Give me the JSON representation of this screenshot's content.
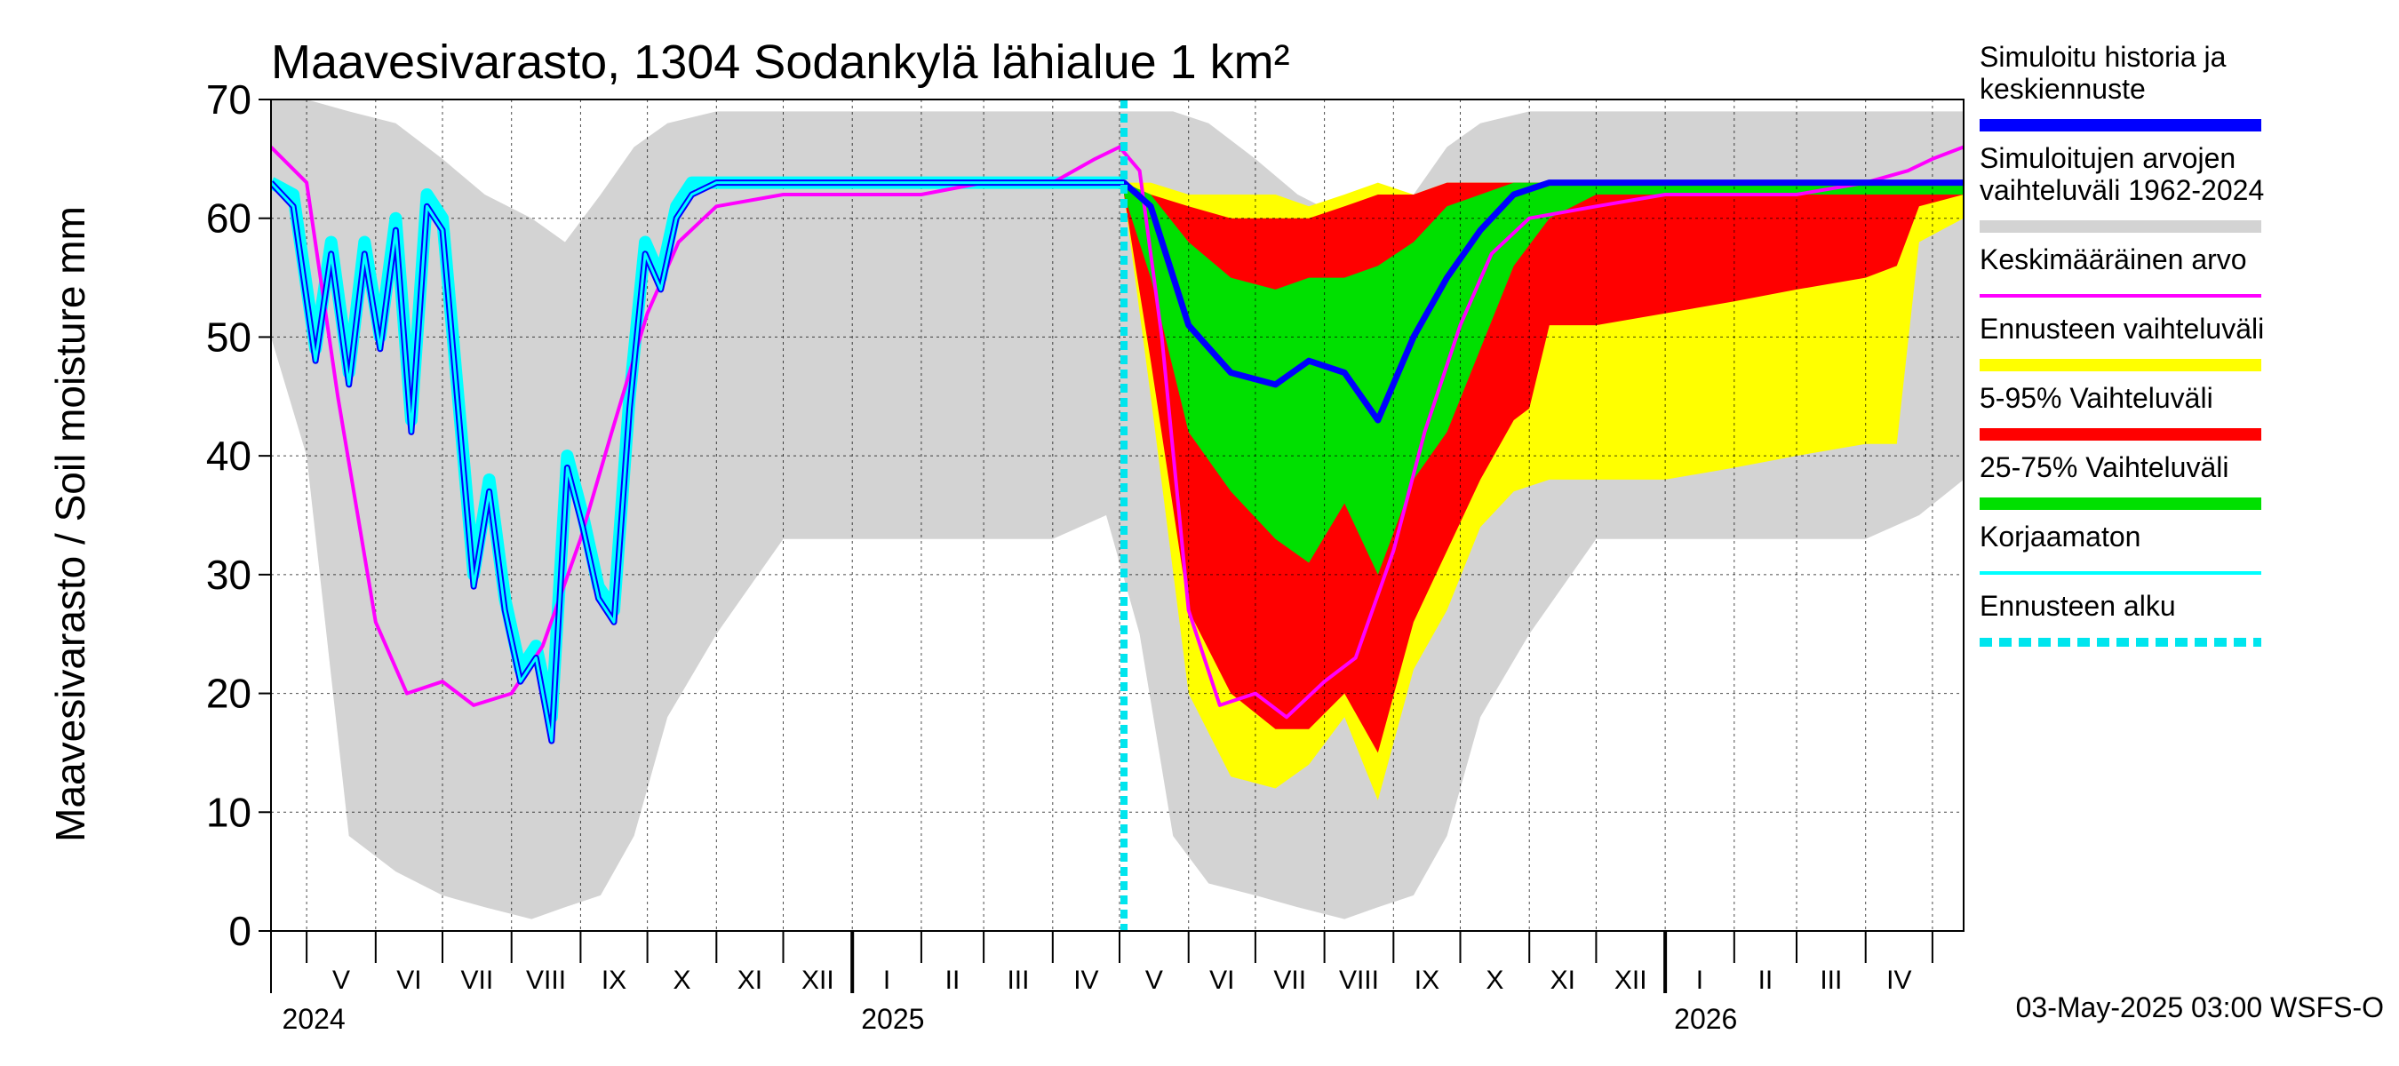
{
  "chart_data": {
    "type": "area",
    "title": "Maavesivarasto, 1304 Sodankylä lähialue 1 km²",
    "ylabel": "Maavesivarasto / Soil moisture   mm",
    "ylim": [
      0,
      70
    ],
    "y_ticks": [
      "0",
      "10",
      "20",
      "30",
      "40",
      "50",
      "60",
      "70"
    ],
    "x_axis": {
      "start": "2024-04-15",
      "end": "2026-05-15",
      "forecast_start": "2025-05-03",
      "months": [
        "V",
        "VI",
        "VII",
        "VIII",
        "IX",
        "X",
        "XI",
        "XII",
        "I",
        "II",
        "III",
        "IV",
        "V",
        "VI",
        "VII",
        "VIII",
        "IX",
        "X",
        "XI",
        "XII",
        "I",
        "II",
        "III",
        "IV"
      ],
      "years": [
        "2024",
        "2025",
        "2026"
      ]
    },
    "grid": true,
    "legend_position": "right",
    "legend": [
      {
        "label": "Simuloitu historia ja keskiennuste",
        "color": "#0000ff",
        "style": "solid"
      },
      {
        "label": "Simuloitujen arvojen vaihteluväli 1962-2024",
        "color": "#d3d3d3",
        "style": "solid"
      },
      {
        "label": "Keskimääräinen arvo",
        "color": "#ff00ff",
        "style": "solid"
      },
      {
        "label": "Ennusteen vaihteluväli",
        "color": "#ffff00",
        "style": "solid"
      },
      {
        "label": "5-95% Vaihteluväli",
        "color": "#ff0000",
        "style": "solid"
      },
      {
        "label": "25-75% Vaihteluväli",
        "color": "#00e000",
        "style": "solid"
      },
      {
        "label": "Korjaamaton",
        "color": "#00ffff",
        "style": "solid"
      },
      {
        "label": "Ennusteen alku",
        "color": "#00e5ee",
        "style": "dashed"
      }
    ],
    "series": [
      {
        "name": "Simuloitujen arvojen vaihteluväli 1962-2024",
        "kind": "band",
        "x": [
          "2024-04-15",
          "2024-05-01",
          "2024-05-20",
          "2024-06-10",
          "2024-07-01",
          "2024-07-20",
          "2024-08-10",
          "2024-08-25",
          "2024-09-10",
          "2024-09-25",
          "2024-10-10",
          "2024-11-01",
          "2024-12-01",
          "2025-01-01",
          "2025-02-01",
          "2025-03-01",
          "2025-04-01",
          "2025-04-25",
          "2025-05-10",
          "2025-05-25",
          "2025-06-10",
          "2025-07-01",
          "2025-07-20",
          "2025-08-10",
          "2025-08-25",
          "2025-09-10",
          "2025-09-25",
          "2025-10-10",
          "2025-11-01",
          "2025-12-01",
          "2026-01-01",
          "2026-02-01",
          "2026-03-01",
          "2026-04-01",
          "2026-04-25",
          "2026-05-15"
        ],
        "lower": [
          50,
          40,
          8,
          5,
          3,
          2,
          1,
          2,
          3,
          8,
          18,
          25,
          33,
          33,
          33,
          33,
          33,
          35,
          25,
          8,
          4,
          3,
          2,
          1,
          2,
          3,
          8,
          18,
          25,
          33,
          33,
          33,
          33,
          33,
          35,
          38
        ],
        "upper": [
          70,
          70,
          69,
          68,
          65,
          62,
          60,
          58,
          62,
          66,
          68,
          69,
          69,
          69,
          69,
          69,
          69,
          69,
          69,
          69,
          68,
          65,
          62,
          60,
          58,
          62,
          66,
          68,
          69,
          69,
          69,
          69,
          69,
          69,
          69,
          69
        ]
      },
      {
        "name": "Ennusteen vaihteluväli",
        "kind": "band",
        "x": [
          "2025-05-03",
          "2025-05-15",
          "2025-06-01",
          "2025-06-20",
          "2025-07-10",
          "2025-07-25",
          "2025-08-10",
          "2025-08-25",
          "2025-09-10",
          "2025-09-25",
          "2025-10-10",
          "2025-10-25",
          "2025-11-10",
          "2025-12-01",
          "2026-01-01",
          "2026-02-01",
          "2026-03-01",
          "2026-04-01",
          "2026-04-15",
          "2026-04-25",
          "2026-05-15"
        ],
        "lower": [
          62,
          45,
          20,
          13,
          12,
          14,
          18,
          11,
          22,
          27,
          34,
          37,
          38,
          38,
          38,
          39,
          40,
          41,
          41,
          58,
          60
        ],
        "upper": [
          63,
          63,
          62,
          62,
          62,
          61,
          62,
          63,
          62,
          63,
          63,
          63,
          63,
          63,
          63,
          63,
          63,
          63,
          63,
          63,
          63
        ]
      },
      {
        "name": "5-95% Vaihteluväli",
        "kind": "band",
        "x": [
          "2025-05-03",
          "2025-05-15",
          "2025-06-01",
          "2025-06-20",
          "2025-07-10",
          "2025-07-25",
          "2025-08-10",
          "2025-08-25",
          "2025-09-10",
          "2025-09-25",
          "2025-10-10",
          "2025-10-25",
          "2025-11-01",
          "2025-11-10",
          "2025-12-01",
          "2026-01-01",
          "2026-02-01",
          "2026-03-01",
          "2026-04-01",
          "2026-04-15",
          "2026-04-25",
          "2026-05-15"
        ],
        "lower": [
          62,
          48,
          27,
          20,
          17,
          17,
          20,
          15,
          26,
          32,
          38,
          43,
          44,
          51,
          51,
          52,
          53,
          54,
          55,
          56,
          61,
          62
        ],
        "upper": [
          63,
          62,
          61,
          60,
          60,
          60,
          61,
          62,
          62,
          63,
          63,
          63,
          63,
          63,
          63,
          63,
          63,
          63,
          63,
          63,
          63,
          63
        ]
      },
      {
        "name": "25-75% Vaihteluväli",
        "kind": "band",
        "x": [
          "2025-05-03",
          "2025-05-15",
          "2025-06-01",
          "2025-06-20",
          "2025-07-10",
          "2025-07-25",
          "2025-08-10",
          "2025-08-25",
          "2025-09-10",
          "2025-09-25",
          "2025-10-10",
          "2025-10-25",
          "2025-11-10",
          "2025-12-01",
          "2026-01-01",
          "2026-02-01",
          "2026-03-01",
          "2026-04-01",
          "2026-04-25",
          "2026-05-15"
        ],
        "lower": [
          62,
          55,
          42,
          37,
          33,
          31,
          36,
          30,
          38,
          42,
          49,
          56,
          60,
          62,
          62,
          62,
          62,
          62,
          62,
          62
        ],
        "upper": [
          63,
          62,
          58,
          55,
          54,
          55,
          55,
          56,
          58,
          61,
          62,
          63,
          63,
          63,
          63,
          63,
          63,
          63,
          63,
          63
        ]
      },
      {
        "name": "Keskimääräinen arvo",
        "kind": "line",
        "x": [
          "2024-04-15",
          "2024-05-01",
          "2024-05-15",
          "2024-06-01",
          "2024-06-15",
          "2024-07-01",
          "2024-07-15",
          "2024-08-01",
          "2024-08-15",
          "2024-09-01",
          "2024-09-15",
          "2024-10-01",
          "2024-10-15",
          "2024-11-01",
          "2024-12-01",
          "2025-01-01",
          "2025-02-01",
          "2025-03-01",
          "2025-04-01",
          "2025-04-20",
          "2025-05-01",
          "2025-05-10",
          "2025-05-20",
          "2025-06-01",
          "2025-06-15",
          "2025-07-01",
          "2025-07-15",
          "2025-08-01",
          "2025-08-15",
          "2025-09-01",
          "2025-09-15",
          "2025-10-01",
          "2025-10-15",
          "2025-11-01",
          "2025-12-01",
          "2026-01-01",
          "2026-02-01",
          "2026-03-01",
          "2026-04-01",
          "2026-04-20",
          "2026-05-01",
          "2026-05-15"
        ],
        "values": [
          66,
          63,
          45,
          26,
          20,
          21,
          19,
          20,
          24,
          33,
          42,
          52,
          58,
          61,
          62,
          62,
          62,
          63,
          63,
          65,
          66,
          64,
          50,
          27,
          19,
          20,
          18,
          21,
          23,
          32,
          42,
          51,
          57,
          60,
          61,
          62,
          62,
          62,
          63,
          64,
          65,
          66
        ]
      },
      {
        "name": "Korjaamaton",
        "kind": "line",
        "x": [
          "2024-04-15",
          "2024-04-25",
          "2024-05-05",
          "2024-05-12",
          "2024-05-20",
          "2024-05-27",
          "2024-06-03",
          "2024-06-10",
          "2024-06-17",
          "2024-06-24",
          "2024-07-01",
          "2024-07-08",
          "2024-07-15",
          "2024-07-22",
          "2024-07-29",
          "2024-08-05",
          "2024-08-12",
          "2024-08-19",
          "2024-08-26",
          "2024-09-02",
          "2024-09-09",
          "2024-09-16",
          "2024-09-23",
          "2024-09-30",
          "2024-10-07",
          "2024-10-14",
          "2024-10-21",
          "2024-11-01",
          "2024-12-01",
          "2025-01-01",
          "2025-02-01",
          "2025-03-01",
          "2025-04-01",
          "2025-04-25",
          "2025-05-03"
        ],
        "values": [
          63,
          62,
          49,
          58,
          47,
          58,
          50,
          60,
          43,
          62,
          60,
          45,
          30,
          38,
          28,
          22,
          24,
          18,
          40,
          35,
          29,
          27,
          45,
          58,
          55,
          61,
          63,
          63,
          63,
          63,
          63,
          63,
          63,
          63,
          63
        ]
      },
      {
        "name": "Simuloitu historia ja keskiennuste",
        "kind": "line",
        "x": [
          "2024-04-15",
          "2024-04-25",
          "2024-05-05",
          "2024-05-12",
          "2024-05-20",
          "2024-05-27",
          "2024-06-03",
          "2024-06-10",
          "2024-06-17",
          "2024-06-24",
          "2024-07-01",
          "2024-07-08",
          "2024-07-15",
          "2024-07-22",
          "2024-07-29",
          "2024-08-05",
          "2024-08-12",
          "2024-08-19",
          "2024-08-26",
          "2024-09-02",
          "2024-09-09",
          "2024-09-16",
          "2024-09-23",
          "2024-09-30",
          "2024-10-07",
          "2024-10-14",
          "2024-10-21",
          "2024-11-01",
          "2024-12-01",
          "2025-01-01",
          "2025-02-01",
          "2025-03-01",
          "2025-04-01",
          "2025-04-25",
          "2025-05-03",
          "2025-05-15",
          "2025-06-01",
          "2025-06-20",
          "2025-07-10",
          "2025-07-25",
          "2025-08-10",
          "2025-08-25",
          "2025-09-10",
          "2025-09-25",
          "2025-10-10",
          "2025-10-25",
          "2025-11-10",
          "2025-12-01",
          "2026-01-01",
          "2026-02-01",
          "2026-03-01",
          "2026-04-01",
          "2026-04-25",
          "2026-05-15"
        ],
        "values": [
          63,
          61,
          48,
          57,
          46,
          57,
          49,
          59,
          42,
          61,
          59,
          44,
          29,
          37,
          27,
          21,
          23,
          16,
          39,
          34,
          28,
          26,
          44,
          57,
          54,
          60,
          62,
          63,
          63,
          63,
          63,
          63,
          63,
          63,
          63,
          61,
          51,
          47,
          46,
          48,
          47,
          43,
          50,
          55,
          59,
          62,
          63,
          63,
          63,
          63,
          63,
          63,
          63,
          63
        ]
      }
    ]
  },
  "footer": "03-May-2025 03:00 WSFS-O"
}
